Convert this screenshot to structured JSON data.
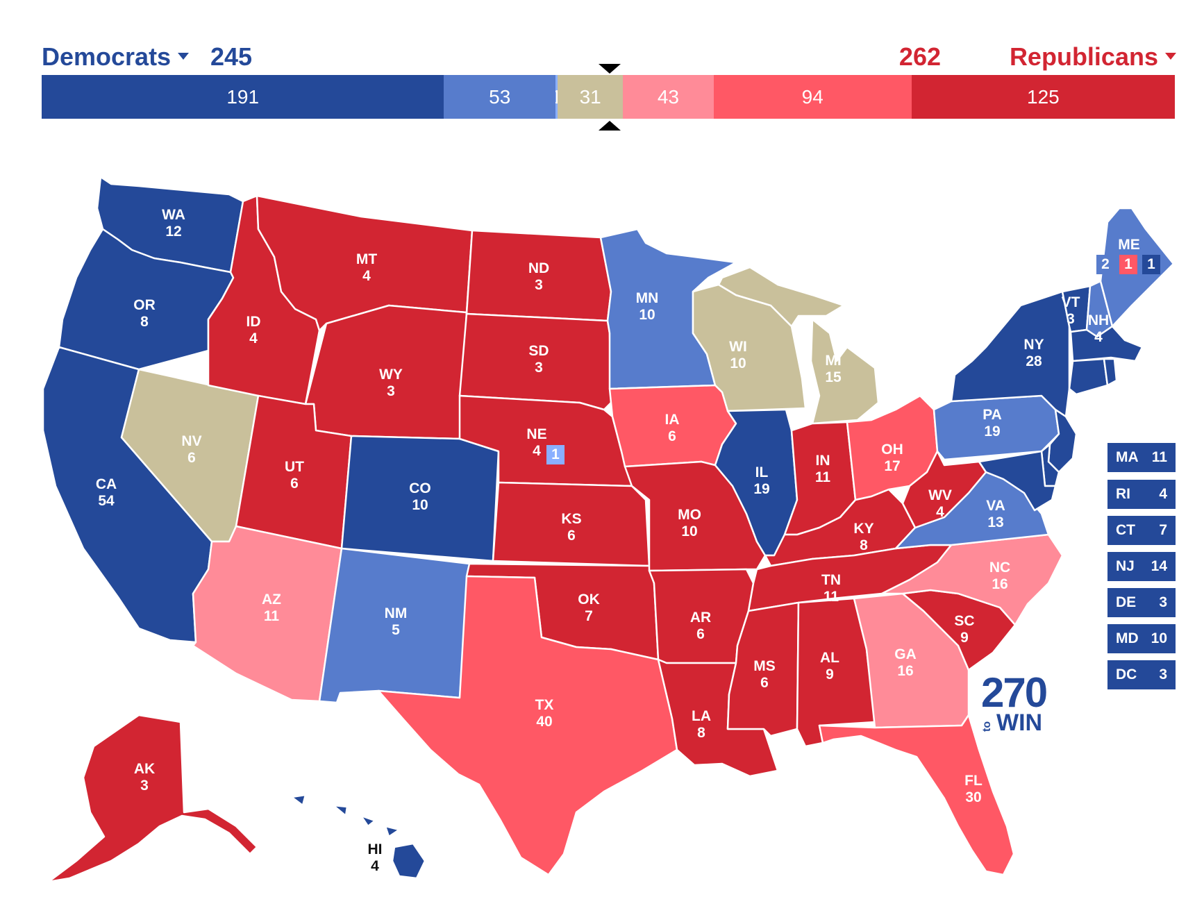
{
  "header": {
    "dem_label": "Democrats",
    "dem_total": "245",
    "rep_label": "Republicans",
    "rep_total": "262"
  },
  "colors": {
    "safe_dem": "#244999",
    "likely_dem": "#577ccc",
    "lean_dem": "#8aafff",
    "tossup": "#c9c09b",
    "lean_rep": "#ff8b98",
    "likely_rep": "#ff5865",
    "safe_rep": "#d22532"
  },
  "bar": [
    {
      "value": 191,
      "label": "191",
      "color": "#244999"
    },
    {
      "value": 53,
      "label": "53",
      "color": "#577ccc"
    },
    {
      "value": 1,
      "label": "1",
      "color": "#8aafff"
    },
    {
      "value": 31,
      "label": "31",
      "color": "#c9c09b"
    },
    {
      "value": 43,
      "label": "43",
      "color": "#ff8b98"
    },
    {
      "value": 94,
      "label": "94",
      "color": "#ff5865"
    },
    {
      "value": 125,
      "label": "125",
      "color": "#d22532"
    }
  ],
  "states": {
    "WA": {
      "abbr": "WA",
      "ev": "12"
    },
    "OR": {
      "abbr": "OR",
      "ev": "8"
    },
    "CA": {
      "abbr": "CA",
      "ev": "54"
    },
    "NV": {
      "abbr": "NV",
      "ev": "6"
    },
    "ID": {
      "abbr": "ID",
      "ev": "4"
    },
    "MT": {
      "abbr": "MT",
      "ev": "4"
    },
    "WY": {
      "abbr": "WY",
      "ev": "3"
    },
    "UT": {
      "abbr": "UT",
      "ev": "6"
    },
    "AZ": {
      "abbr": "AZ",
      "ev": "11"
    },
    "CO": {
      "abbr": "CO",
      "ev": "10"
    },
    "NM": {
      "abbr": "NM",
      "ev": "5"
    },
    "ND": {
      "abbr": "ND",
      "ev": "3"
    },
    "SD": {
      "abbr": "SD",
      "ev": "3"
    },
    "NE": {
      "abbr": "NE",
      "ev": "4",
      "district": "1"
    },
    "KS": {
      "abbr": "KS",
      "ev": "6"
    },
    "OK": {
      "abbr": "OK",
      "ev": "7"
    },
    "TX": {
      "abbr": "TX",
      "ev": "40"
    },
    "MN": {
      "abbr": "MN",
      "ev": "10"
    },
    "IA": {
      "abbr": "IA",
      "ev": "6"
    },
    "MO": {
      "abbr": "MO",
      "ev": "10"
    },
    "AR": {
      "abbr": "AR",
      "ev": "6"
    },
    "LA": {
      "abbr": "LA",
      "ev": "8"
    },
    "WI": {
      "abbr": "WI",
      "ev": "10"
    },
    "IL": {
      "abbr": "IL",
      "ev": "19"
    },
    "MI": {
      "abbr": "MI",
      "ev": "15"
    },
    "IN": {
      "abbr": "IN",
      "ev": "11"
    },
    "OH": {
      "abbr": "OH",
      "ev": "17"
    },
    "KY": {
      "abbr": "KY",
      "ev": "8"
    },
    "TN": {
      "abbr": "TN",
      "ev": "11"
    },
    "MS": {
      "abbr": "MS",
      "ev": "6"
    },
    "AL": {
      "abbr": "AL",
      "ev": "9"
    },
    "GA": {
      "abbr": "GA",
      "ev": "16"
    },
    "FL": {
      "abbr": "FL",
      "ev": "30"
    },
    "SC": {
      "abbr": "SC",
      "ev": "9"
    },
    "NC": {
      "abbr": "NC",
      "ev": "16"
    },
    "VA": {
      "abbr": "VA",
      "ev": "13"
    },
    "WV": {
      "abbr": "WV",
      "ev": "4"
    },
    "PA": {
      "abbr": "PA",
      "ev": "19"
    },
    "NY": {
      "abbr": "NY",
      "ev": "28"
    },
    "VT": {
      "abbr": "VT",
      "ev": "3"
    },
    "NH": {
      "abbr": "NH",
      "ev": "4"
    },
    "ME": {
      "abbr": "ME",
      "ev": "2",
      "district1": "1",
      "district2": "1"
    },
    "AK": {
      "abbr": "AK",
      "ev": "3"
    },
    "HI": {
      "abbr": "HI",
      "ev": "4"
    }
  },
  "northeast": [
    {
      "abbr": "MA",
      "ev": "11"
    },
    {
      "abbr": "RI",
      "ev": "4"
    },
    {
      "abbr": "CT",
      "ev": "7"
    },
    {
      "abbr": "NJ",
      "ev": "14"
    },
    {
      "abbr": "DE",
      "ev": "3"
    },
    {
      "abbr": "MD",
      "ev": "10"
    },
    {
      "abbr": "DC",
      "ev": "3"
    }
  ],
  "logo": {
    "number": "270",
    "to": "to",
    "win": "WIN"
  }
}
